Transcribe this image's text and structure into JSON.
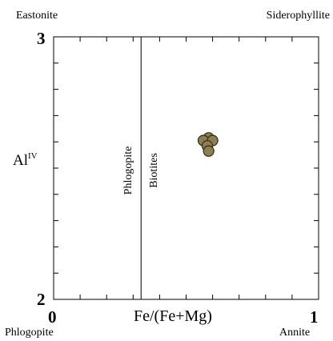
{
  "corners": {
    "top_left": "Eastonite",
    "top_right": "Siderophyllite",
    "bottom_left": "Phlogopite",
    "bottom_right": "Annite"
  },
  "y_axis": {
    "label_base": "Al",
    "label_sup": "IV",
    "min_label": "2",
    "max_label": "3"
  },
  "x_axis": {
    "label": "Fe/(Fe+Mg)",
    "min_label": "0",
    "max_label": "1"
  },
  "divider": {
    "left_label": "Phlogopite",
    "right_label": "Biotites"
  },
  "colors": {
    "marker_fill": "#8b7f55",
    "marker_stroke": "#3a3118",
    "axis": "#000000",
    "divider": "#000000"
  },
  "chart_data": {
    "type": "scatter",
    "xlim": [
      0,
      1
    ],
    "ylim": [
      2,
      3
    ],
    "divider_x": 0.33,
    "series": [
      {
        "x": [
          0.585,
          0.565,
          0.6,
          0.58,
          0.585
        ],
        "y": [
          2.615,
          2.605,
          2.605,
          2.585,
          2.565
        ]
      }
    ]
  }
}
